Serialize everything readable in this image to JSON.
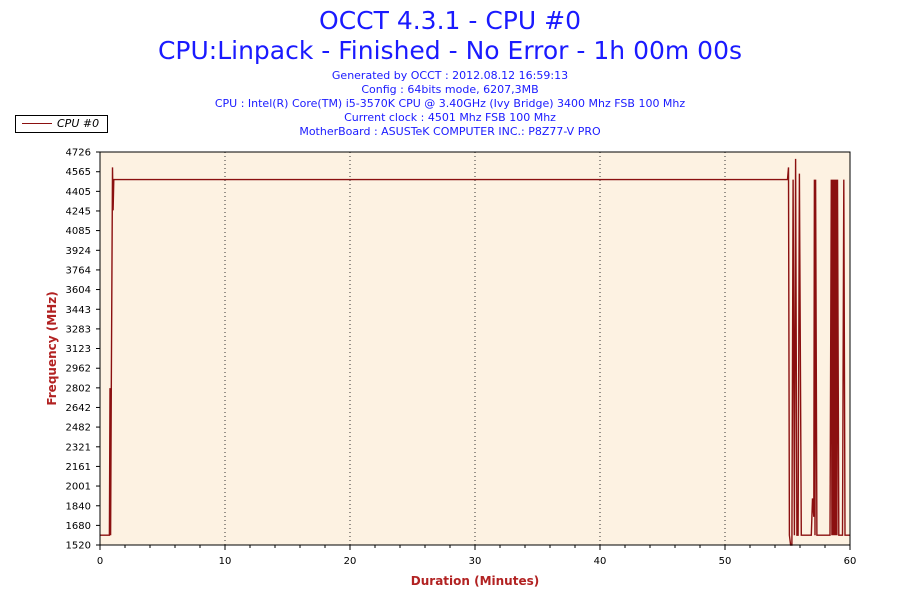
{
  "header": {
    "title": "OCCT 4.3.1 - CPU #0",
    "subtitle": "CPU:Linpack - Finished - No Error - 1h 00m 00s",
    "info_lines": [
      "Generated by OCCT : 2012.08.12 16:59:13",
      "Config : 64bits mode, 6207,3MB",
      "CPU : Intel(R) Core(TM) i5-3570K CPU @ 3.40GHz (Ivy Bridge) 3400 Mhz FSB 100 Mhz",
      "Current clock : 4501 Mhz FSB 100 Mhz",
      "MotherBoard : ASUSTeK COMPUTER INC.: P8Z77-V PRO"
    ]
  },
  "colors": {
    "series": "#8b1010",
    "plot_background": "#fdf2e2",
    "axis_label": "#b22222",
    "title": "#1a1aff"
  },
  "chart_data": {
    "type": "line",
    "title": "OCCT 4.3.1 - CPU #0",
    "xlabel": "Duration (Minutes)",
    "ylabel": "Frequency (MHz)",
    "xlim": [
      0,
      60
    ],
    "ylim": [
      1520,
      4726
    ],
    "x_ticks": [
      "0",
      "10",
      "20",
      "30",
      "40",
      "50",
      "60"
    ],
    "y_ticks": [
      "1520",
      "1680",
      "1840",
      "2001",
      "2161",
      "2321",
      "2482",
      "2642",
      "2802",
      "2962",
      "3123",
      "3283",
      "3443",
      "3604",
      "3764",
      "3924",
      "4085",
      "4245",
      "4405",
      "4565",
      "4726"
    ],
    "grid": "vertical dotted",
    "legend_position": "top-left",
    "series": [
      {
        "name": "CPU #0",
        "x": [
          0.0,
          0.3,
          0.6,
          0.75,
          0.8,
          0.85,
          0.9,
          1.0,
          1.05,
          1.1,
          1.2,
          10,
          20,
          30,
          40,
          50,
          55.0,
          55.08,
          55.15,
          55.25,
          55.35,
          55.45,
          55.55,
          55.65,
          55.75,
          55.85,
          55.95,
          56.1,
          56.25,
          56.5,
          56.9,
          57.0,
          57.1,
          57.15,
          57.2,
          57.25,
          57.35,
          57.5,
          57.8,
          58.2,
          58.4,
          58.5,
          58.55,
          58.6,
          58.65,
          58.7,
          58.75,
          58.8,
          58.85,
          58.9,
          58.95,
          59.0,
          59.1,
          59.3,
          59.4,
          59.5,
          59.6,
          60.0
        ],
        "y": [
          1600,
          1600,
          1600,
          1600,
          2800,
          1600,
          2800,
          4600,
          4250,
          4501,
          4501,
          4501,
          4501,
          4501,
          4501,
          4501,
          4501,
          4600,
          1600,
          1520,
          1520,
          4501,
          1600,
          4670,
          1600,
          1600,
          4550,
          1600,
          1600,
          1600,
          1600,
          1900,
          1750,
          4501,
          1600,
          4501,
          1600,
          1600,
          1600,
          1600,
          1600,
          4501,
          1600,
          4501,
          1600,
          4501,
          1600,
          4501,
          1600,
          4501,
          1600,
          4501,
          1600,
          1600,
          1600,
          4501,
          1600,
          1600
        ]
      }
    ]
  }
}
